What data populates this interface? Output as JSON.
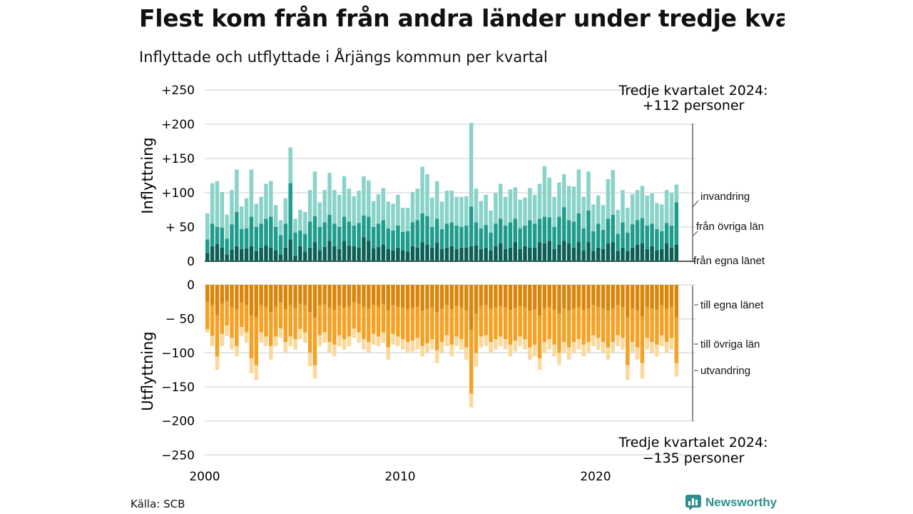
{
  "title": "Flest kom från från andra länder under tredje kvartalet",
  "subtitle": "Inflyttade och utflyttade i Årjängs kommun per kvartal",
  "source": "Källa: SCB",
  "brand": "Newsworthy",
  "chart_data": {
    "type": "bar",
    "stacked": true,
    "x_start": 2000,
    "frequency": "quarterly",
    "x_ticks": [
      "2000",
      "2010",
      "2020"
    ],
    "panels": [
      {
        "name": "Inflyttning",
        "ylim": [
          0,
          250
        ],
        "y_ticks": [
          "+250",
          "+200",
          "+150",
          "+100",
          "+ 50",
          "0"
        ],
        "y_tick_values": [
          250,
          200,
          150,
          100,
          50,
          0
        ],
        "annotation": {
          "line1": "Tredje kvartalet 2024:",
          "line2": "+112 personer"
        },
        "series": [
          {
            "name": "från egna länet",
            "color": "#0b5f55"
          },
          {
            "name": "från övriga län",
            "color": "#1f9c8c"
          },
          {
            "name": "invandring",
            "color": "#89d3c9"
          }
        ],
        "totals": [
          70,
          114,
          117,
          101,
          68,
          104,
          134,
          80,
          92,
          134,
          84,
          94,
          113,
          117,
          82,
          60,
          92,
          166,
          62,
          75,
          72,
          104,
          131,
          86,
          104,
          129,
          104,
          97,
          124,
          106,
          95,
          103,
          124,
          118,
          88,
          98,
          107,
          87,
          84,
          97,
          78,
          78,
          101,
          106,
          138,
          127,
          93,
          117,
          87,
          103,
          103,
          94,
          94,
          95,
          202,
          106,
          88,
          97,
          74,
          100,
          113,
          94,
          105,
          108,
          90,
          93,
          107,
          97,
          113,
          139,
          122,
          94,
          115,
          127,
          110,
          109,
          134,
          94,
          131,
          83,
          96,
          82,
          120,
          133,
          75,
          104,
          78,
          98,
          104,
          110,
          96,
          99,
          85,
          83,
          104,
          100,
          112
        ],
        "sub_totals": [
          32,
          55,
          50,
          49,
          33,
          54,
          72,
          47,
          48,
          65,
          50,
          55,
          62,
          65,
          50,
          38,
          55,
          114,
          42,
          45,
          40,
          58,
          66,
          50,
          57,
          68,
          55,
          50,
          65,
          58,
          52,
          56,
          67,
          65,
          50,
          55,
          60,
          48,
          45,
          52,
          43,
          44,
          57,
          60,
          70,
          66,
          50,
          62,
          47,
          55,
          57,
          52,
          50,
          52,
          80,
          57,
          48,
          53,
          42,
          55,
          62,
          52,
          57,
          62,
          48,
          52,
          60,
          55,
          62,
          65,
          64,
          50,
          65,
          79,
          60,
          58,
          70,
          48,
          74,
          44,
          55,
          46,
          62,
          68,
          40,
          57,
          42,
          54,
          60,
          63,
          52,
          55,
          47,
          44,
          56,
          52,
          86
        ],
        "base_values": [
          12,
          22,
          25,
          20,
          10,
          17,
          22,
          18,
          19,
          22,
          15,
          20,
          23,
          20,
          16,
          10,
          20,
          32,
          8,
          22,
          14,
          20,
          28,
          16,
          21,
          30,
          22,
          18,
          30,
          23,
          22,
          20,
          35,
          30,
          19,
          21,
          24,
          18,
          16,
          20,
          16,
          14,
          22,
          20,
          28,
          24,
          20,
          27,
          18,
          20,
          22,
          18,
          20,
          20,
          22,
          23,
          18,
          20,
          16,
          22,
          26,
          18,
          20,
          28,
          18,
          22,
          20,
          20,
          28,
          26,
          30,
          18,
          24,
          30,
          26,
          20,
          28,
          16,
          28,
          15,
          20,
          18,
          26,
          28,
          15,
          20,
          15,
          20,
          24,
          26,
          18,
          22,
          16,
          18,
          26,
          20,
          24
        ]
      },
      {
        "name": "Utflyttning",
        "ylim": [
          -250,
          0
        ],
        "y_ticks": [
          "0",
          "− 50",
          "−100",
          "−150",
          "−200",
          "−250"
        ],
        "y_tick_values": [
          0,
          -50,
          -100,
          -150,
          -200,
          -250
        ],
        "annotation": {
          "line1": "Tredje kvartalet 2024:",
          "line2": "−135 personer"
        },
        "series": [
          {
            "name": "till egna länet",
            "color": "#d9860b"
          },
          {
            "name": "till övriga län",
            "color": "#f4a124"
          },
          {
            "name": "utvandring",
            "color": "#fbd89b"
          }
        ],
        "totals": [
          -70,
          -90,
          -125,
          -90,
          -75,
          -95,
          -105,
          -75,
          -85,
          -130,
          -140,
          -85,
          -90,
          -110,
          -90,
          -78,
          -100,
          -90,
          -95,
          -80,
          -85,
          -120,
          -138,
          -90,
          -85,
          -100,
          -105,
          -90,
          -95,
          -90,
          -78,
          -85,
          -95,
          -100,
          -88,
          -90,
          -85,
          -110,
          -88,
          -90,
          -95,
          -100,
          -98,
          -95,
          -105,
          -100,
          -95,
          -115,
          -100,
          -90,
          -105,
          -90,
          -95,
          -110,
          -180,
          -120,
          -92,
          -90,
          -100,
          -95,
          -90,
          -95,
          -105,
          -98,
          -90,
          -95,
          -110,
          -105,
          -125,
          -100,
          -95,
          -105,
          -118,
          -100,
          -110,
          -100,
          -95,
          -105,
          -100,
          -90,
          -95,
          -100,
          -110,
          -100,
          -90,
          -95,
          -140,
          -100,
          -110,
          -138,
          -95,
          -100,
          -105,
          -90,
          -100,
          -95,
          -135
        ],
        "sub_totals": [
          -65,
          -75,
          -105,
          -72,
          -60,
          -78,
          -90,
          -62,
          -70,
          -108,
          -118,
          -70,
          -76,
          -90,
          -76,
          -64,
          -84,
          -76,
          -80,
          -65,
          -70,
          -100,
          -118,
          -74,
          -70,
          -84,
          -88,
          -74,
          -80,
          -76,
          -64,
          -70,
          -80,
          -84,
          -72,
          -76,
          -70,
          -92,
          -72,
          -76,
          -80,
          -84,
          -82,
          -78,
          -90,
          -86,
          -80,
          -96,
          -84,
          -74,
          -88,
          -76,
          -80,
          -92,
          -160,
          -100,
          -76,
          -74,
          -84,
          -80,
          -76,
          -80,
          -88,
          -82,
          -76,
          -80,
          -92,
          -88,
          -108,
          -84,
          -80,
          -88,
          -100,
          -84,
          -92,
          -84,
          -80,
          -88,
          -84,
          -74,
          -78,
          -84,
          -92,
          -84,
          -74,
          -78,
          -118,
          -84,
          -92,
          -115,
          -78,
          -84,
          -88,
          -74,
          -84,
          -78,
          -115
        ],
        "base_values": [
          -25,
          -30,
          -45,
          -28,
          -24,
          -33,
          -36,
          -26,
          -30,
          -45,
          -48,
          -30,
          -32,
          -40,
          -32,
          -26,
          -36,
          -30,
          -34,
          -28,
          -30,
          -40,
          -48,
          -30,
          -29,
          -34,
          -37,
          -30,
          -33,
          -31,
          -26,
          -28,
          -32,
          -35,
          -30,
          -32,
          -28,
          -38,
          -30,
          -32,
          -34,
          -36,
          -34,
          -32,
          -38,
          -36,
          -33,
          -40,
          -35,
          -30,
          -36,
          -31,
          -33,
          -38,
          -66,
          -42,
          -31,
          -30,
          -35,
          -33,
          -31,
          -33,
          -37,
          -34,
          -31,
          -33,
          -38,
          -36,
          -45,
          -35,
          -33,
          -37,
          -42,
          -35,
          -38,
          -35,
          -33,
          -37,
          -35,
          -30,
          -32,
          -35,
          -38,
          -35,
          -30,
          -32,
          -48,
          -35,
          -38,
          -47,
          -32,
          -35,
          -37,
          -30,
          -35,
          -32,
          -48
        ]
      }
    ]
  }
}
